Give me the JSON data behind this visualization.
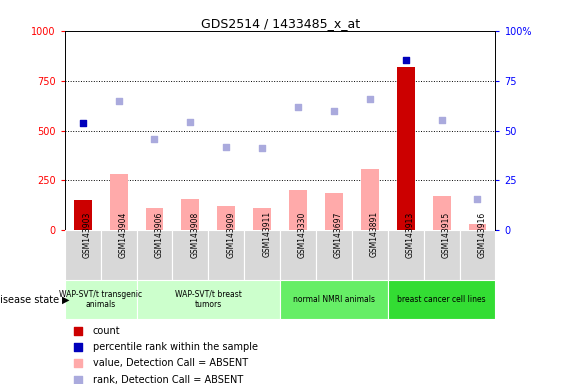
{
  "title": "GDS2514 / 1433485_x_at",
  "samples": [
    "GSM143903",
    "GSM143904",
    "GSM143906",
    "GSM143908",
    "GSM143909",
    "GSM143911",
    "GSM143330",
    "GSM143697",
    "GSM143891",
    "GSM143913",
    "GSM143915",
    "GSM143916"
  ],
  "count_values": [
    150,
    0,
    0,
    0,
    0,
    0,
    0,
    0,
    0,
    820,
    0,
    0
  ],
  "pink_bar_values": [
    0,
    280,
    110,
    155,
    120,
    110,
    200,
    185,
    305,
    0,
    170,
    30
  ],
  "blue_square_left": [
    540,
    null,
    null,
    null,
    null,
    null,
    null,
    null,
    null,
    855,
    null,
    null
  ],
  "lavender_square_left": [
    null,
    650,
    460,
    545,
    420,
    415,
    620,
    600,
    660,
    null,
    555,
    155
  ],
  "ylim_left": [
    0,
    1000
  ],
  "ylim_right": [
    0,
    100
  ],
  "yticks_left": [
    0,
    250,
    500,
    750,
    1000
  ],
  "yticks_right": [
    0,
    25,
    50,
    75,
    100
  ],
  "count_color": "#cc0000",
  "pink_color": "#ffaaaa",
  "blue_color": "#0000bb",
  "lavender_color": "#aaaadd",
  "group_spans": [
    [
      0,
      2,
      "WAP-SVT/t transgenic\nanimals",
      "#ccffcc"
    ],
    [
      2,
      6,
      "WAP-SVT/t breast\ntumors",
      "#ccffcc"
    ],
    [
      6,
      9,
      "normal NMRI animals",
      "#66ee66"
    ],
    [
      9,
      12,
      "breast cancer cell lines",
      "#33dd33"
    ]
  ]
}
